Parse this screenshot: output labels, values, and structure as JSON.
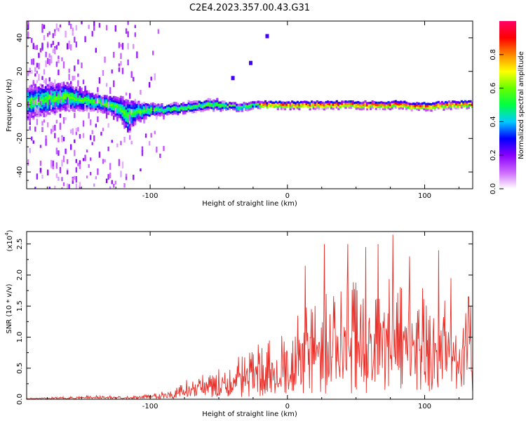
{
  "title": "C2E4.2023.357.00.43.G31",
  "chart_data": [
    {
      "type": "heatmap",
      "xlabel": "Height of straight line (km)",
      "ylabel": "Frequency (Hz)",
      "xlim": [
        -190,
        135
      ],
      "ylim": [
        -50,
        50
      ],
      "xticks": [
        -100,
        0,
        100
      ],
      "yticks": [
        -40,
        -20,
        0,
        20,
        40
      ],
      "colorbar": {
        "label": "Normalized spectral amplitude",
        "range": [
          0,
          1
        ],
        "ticks": [
          "0.0",
          "0.2",
          "0.4",
          "0.6",
          "0.8"
        ],
        "colors": [
          "#ffffff",
          "#cc66ff",
          "#8800ff",
          "#0000ff",
          "#00ccff",
          "#00ff44",
          "#66ff00",
          "#ffff00",
          "#ff8800",
          "#ff0000",
          "#ff0066"
        ]
      },
      "ridge": {
        "x": [
          -185,
          -170,
          -160,
          -150,
          -140,
          -130,
          -122,
          -116,
          -110,
          -100,
          -90,
          -80,
          -70,
          -60,
          -50,
          -40,
          -30,
          -20,
          -10,
          0,
          20,
          40,
          60,
          80,
          100,
          120,
          135
        ],
        "y": [
          2,
          4,
          5,
          3,
          2,
          0,
          -2,
          -7,
          -4,
          -3,
          -3,
          -2,
          -1,
          0,
          0,
          -1,
          -1,
          0,
          0,
          0,
          0,
          0,
          0,
          0,
          -1,
          0,
          0
        ]
      },
      "band_halfwidth_hz": [
        10,
        9,
        8,
        6,
        5,
        5,
        7,
        10,
        6,
        4,
        3,
        3,
        3,
        3,
        3,
        2,
        2,
        2,
        2,
        2,
        2,
        2,
        2,
        2,
        2,
        2,
        2
      ],
      "outliers": [
        {
          "x": -40,
          "y": 16
        },
        {
          "x": -27,
          "y": 25
        },
        {
          "x": -15,
          "y": 41
        }
      ]
    },
    {
      "type": "line",
      "xlabel": "Height of straight line (km)",
      "ylabel": "SNR (10 * v/v)",
      "y_multiplier": "(x10",
      "y_multiplier_exp": "4",
      "y_multiplier_close": ")",
      "xlim": [
        -190,
        135
      ],
      "ylim": [
        0,
        2.7
      ],
      "xticks": [
        -100,
        0,
        100
      ],
      "yticks": [
        "0.0",
        "0.5",
        "1.0",
        "1.5",
        "2.0",
        "2.5"
      ],
      "color": "#e8302a",
      "envelope": {
        "x": [
          -190,
          -140,
          -110,
          -95,
          -85,
          -75,
          -65,
          -55,
          -45,
          -35,
          -25,
          -15,
          -5,
          5,
          15,
          25,
          35,
          45,
          55,
          65,
          75,
          85,
          95,
          105,
          115,
          125,
          135
        ],
        "y": [
          0.02,
          0.06,
          0.05,
          0.1,
          0.18,
          0.3,
          0.4,
          0.45,
          0.55,
          0.7,
          0.85,
          0.95,
          1.05,
          1.3,
          1.55,
          1.75,
          1.85,
          1.9,
          1.95,
          2.0,
          2.05,
          2.0,
          1.9,
          1.75,
          1.75,
          1.6,
          1.5
        ]
      },
      "peaks": [
        {
          "x": 13,
          "y": 2.15
        },
        {
          "x": 27,
          "y": 2.5
        },
        {
          "x": 44,
          "y": 2.5
        },
        {
          "x": 57,
          "y": 2.45
        },
        {
          "x": 66,
          "y": 2.5
        },
        {
          "x": 77,
          "y": 2.65
        },
        {
          "x": 89,
          "y": 2.3
        },
        {
          "x": 110,
          "y": 2.4
        },
        {
          "x": 119,
          "y": 1.95
        },
        {
          "x": 132,
          "y": 1.65
        }
      ]
    }
  ]
}
